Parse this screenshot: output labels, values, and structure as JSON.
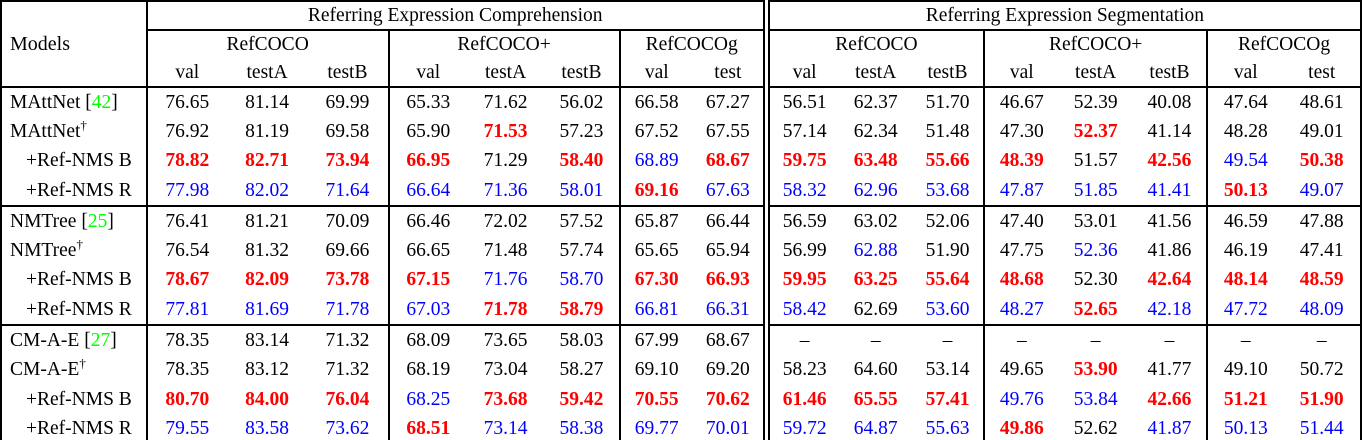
{
  "colors": {
    "best_result": "#ff0000",
    "second_best_result": "#0000ff",
    "normal_text": "#000000",
    "citation": "#00ff00",
    "rule": "#000000",
    "background": "#ffffff"
  },
  "legend_note": {
    "best_flag": "r = best (red bold)",
    "second_flag": "b = second best (blue)",
    "normal_flag": "n = normal (black)"
  },
  "header": {
    "models_label": "Models",
    "sections": [
      {
        "title": "Referring Expression Comprehension",
        "groups": [
          {
            "name": "RefCOCO",
            "cols": [
              "val",
              "testA",
              "testB"
            ]
          },
          {
            "name": "RefCOCO+",
            "cols": [
              "val",
              "testA",
              "testB"
            ]
          },
          {
            "name": "RefCOCOg",
            "cols": [
              "val",
              "test"
            ]
          }
        ]
      },
      {
        "title": "Referring Expression Segmentation",
        "groups": [
          {
            "name": "RefCOCO",
            "cols": [
              "val",
              "testA",
              "testB"
            ]
          },
          {
            "name": "RefCOCO+",
            "cols": [
              "val",
              "testA",
              "testB"
            ]
          },
          {
            "name": "RefCOCOg",
            "cols": [
              "val",
              "test"
            ]
          }
        ]
      }
    ]
  },
  "rows": [
    {
      "model": "MAttNet",
      "citation": "42",
      "dagger": false,
      "indent": false,
      "block_start": false,
      "values": [
        "76.65",
        "81.14",
        "69.99",
        "65.33",
        "71.62",
        "56.02",
        "66.58",
        "67.27",
        "56.51",
        "62.37",
        "51.70",
        "46.67",
        "52.39",
        "40.08",
        "47.64",
        "48.61"
      ],
      "flags": "nnnnnnnnnnnnnnnn"
    },
    {
      "model": "MAttNet",
      "citation": null,
      "dagger": true,
      "indent": false,
      "block_start": false,
      "values": [
        "76.92",
        "81.19",
        "69.58",
        "65.90",
        "71.53",
        "57.23",
        "67.52",
        "67.55",
        "57.14",
        "62.34",
        "51.48",
        "47.30",
        "52.37",
        "41.14",
        "48.28",
        "49.01"
      ],
      "flags": "nnnnrnnnnnnnrnnn"
    },
    {
      "model": "+Ref-NMS B",
      "citation": null,
      "dagger": false,
      "indent": true,
      "block_start": false,
      "values": [
        "78.82",
        "82.71",
        "73.94",
        "66.95",
        "71.29",
        "58.40",
        "68.89",
        "68.67",
        "59.75",
        "63.48",
        "55.66",
        "48.39",
        "51.57",
        "42.56",
        "49.54",
        "50.38"
      ],
      "flags": "rrrrnrbrrrrrnrbr"
    },
    {
      "model": "+Ref-NMS R",
      "citation": null,
      "dagger": false,
      "indent": true,
      "block_start": false,
      "values": [
        "77.98",
        "82.02",
        "71.64",
        "66.64",
        "71.36",
        "58.01",
        "69.16",
        "67.63",
        "58.32",
        "62.96",
        "53.68",
        "47.87",
        "51.85",
        "41.41",
        "50.13",
        "49.07"
      ],
      "flags": "bbbbbbrbbbbbbbrb"
    },
    {
      "model": "NMTree",
      "citation": "25",
      "dagger": false,
      "indent": false,
      "block_start": true,
      "values": [
        "76.41",
        "81.21",
        "70.09",
        "66.46",
        "72.02",
        "57.52",
        "65.87",
        "66.44",
        "56.59",
        "63.02",
        "52.06",
        "47.40",
        "53.01",
        "41.56",
        "46.59",
        "47.88"
      ],
      "flags": "nnnnnnnnnnnnnnnn"
    },
    {
      "model": "NMTree",
      "citation": null,
      "dagger": true,
      "indent": false,
      "block_start": false,
      "values": [
        "76.54",
        "81.32",
        "69.66",
        "66.65",
        "71.48",
        "57.74",
        "65.65",
        "65.94",
        "56.99",
        "62.88",
        "51.90",
        "47.75",
        "52.36",
        "41.86",
        "46.19",
        "47.41"
      ],
      "flags": "nnnnnnnnnbnnbnnn"
    },
    {
      "model": "+Ref-NMS B",
      "citation": null,
      "dagger": false,
      "indent": true,
      "block_start": false,
      "values": [
        "78.67",
        "82.09",
        "73.78",
        "67.15",
        "71.76",
        "58.70",
        "67.30",
        "66.93",
        "59.95",
        "63.25",
        "55.64",
        "48.68",
        "52.30",
        "42.64",
        "48.14",
        "48.59"
      ],
      "flags": "rrrrbbrrrrrrnrrr"
    },
    {
      "model": "+Ref-NMS R",
      "citation": null,
      "dagger": false,
      "indent": true,
      "block_start": false,
      "values": [
        "77.81",
        "81.69",
        "71.78",
        "67.03",
        "71.78",
        "58.79",
        "66.81",
        "66.31",
        "58.42",
        "62.69",
        "53.60",
        "48.27",
        "52.65",
        "42.18",
        "47.72",
        "48.09"
      ],
      "flags": "bbbbrrbbbnbbrbbb"
    },
    {
      "model": "CM-A-E",
      "citation": "27",
      "dagger": false,
      "indent": false,
      "block_start": true,
      "values": [
        "78.35",
        "83.14",
        "71.32",
        "68.09",
        "73.65",
        "58.03",
        "67.99",
        "68.67",
        "–",
        "–",
        "–",
        "–",
        "–",
        "–",
        "–",
        "–"
      ],
      "flags": "nnnnnnnnnnnnnnnn"
    },
    {
      "model": "CM-A-E",
      "citation": null,
      "dagger": true,
      "indent": false,
      "block_start": false,
      "values": [
        "78.35",
        "83.12",
        "71.32",
        "68.19",
        "73.04",
        "58.27",
        "69.10",
        "69.20",
        "58.23",
        "64.60",
        "53.14",
        "49.65",
        "53.90",
        "41.77",
        "49.10",
        "50.72"
      ],
      "flags": "nnnnnnnnnnnnrnnn"
    },
    {
      "model": "+Ref-NMS B",
      "citation": null,
      "dagger": false,
      "indent": true,
      "block_start": false,
      "values": [
        "80.70",
        "84.00",
        "76.04",
        "68.25",
        "73.68",
        "59.42",
        "70.55",
        "70.62",
        "61.46",
        "65.55",
        "57.41",
        "49.76",
        "53.84",
        "42.66",
        "51.21",
        "51.90"
      ],
      "flags": "rrrbrrrrrrrbbrrr"
    },
    {
      "model": "+Ref-NMS R",
      "citation": null,
      "dagger": false,
      "indent": true,
      "block_start": false,
      "values": [
        "79.55",
        "83.58",
        "73.62",
        "68.51",
        "73.14",
        "58.38",
        "69.77",
        "70.01",
        "59.72",
        "64.87",
        "55.63",
        "49.86",
        "52.62",
        "41.87",
        "50.13",
        "51.44"
      ],
      "flags": "bbbrbbbbbbbrnbbb"
    }
  ]
}
